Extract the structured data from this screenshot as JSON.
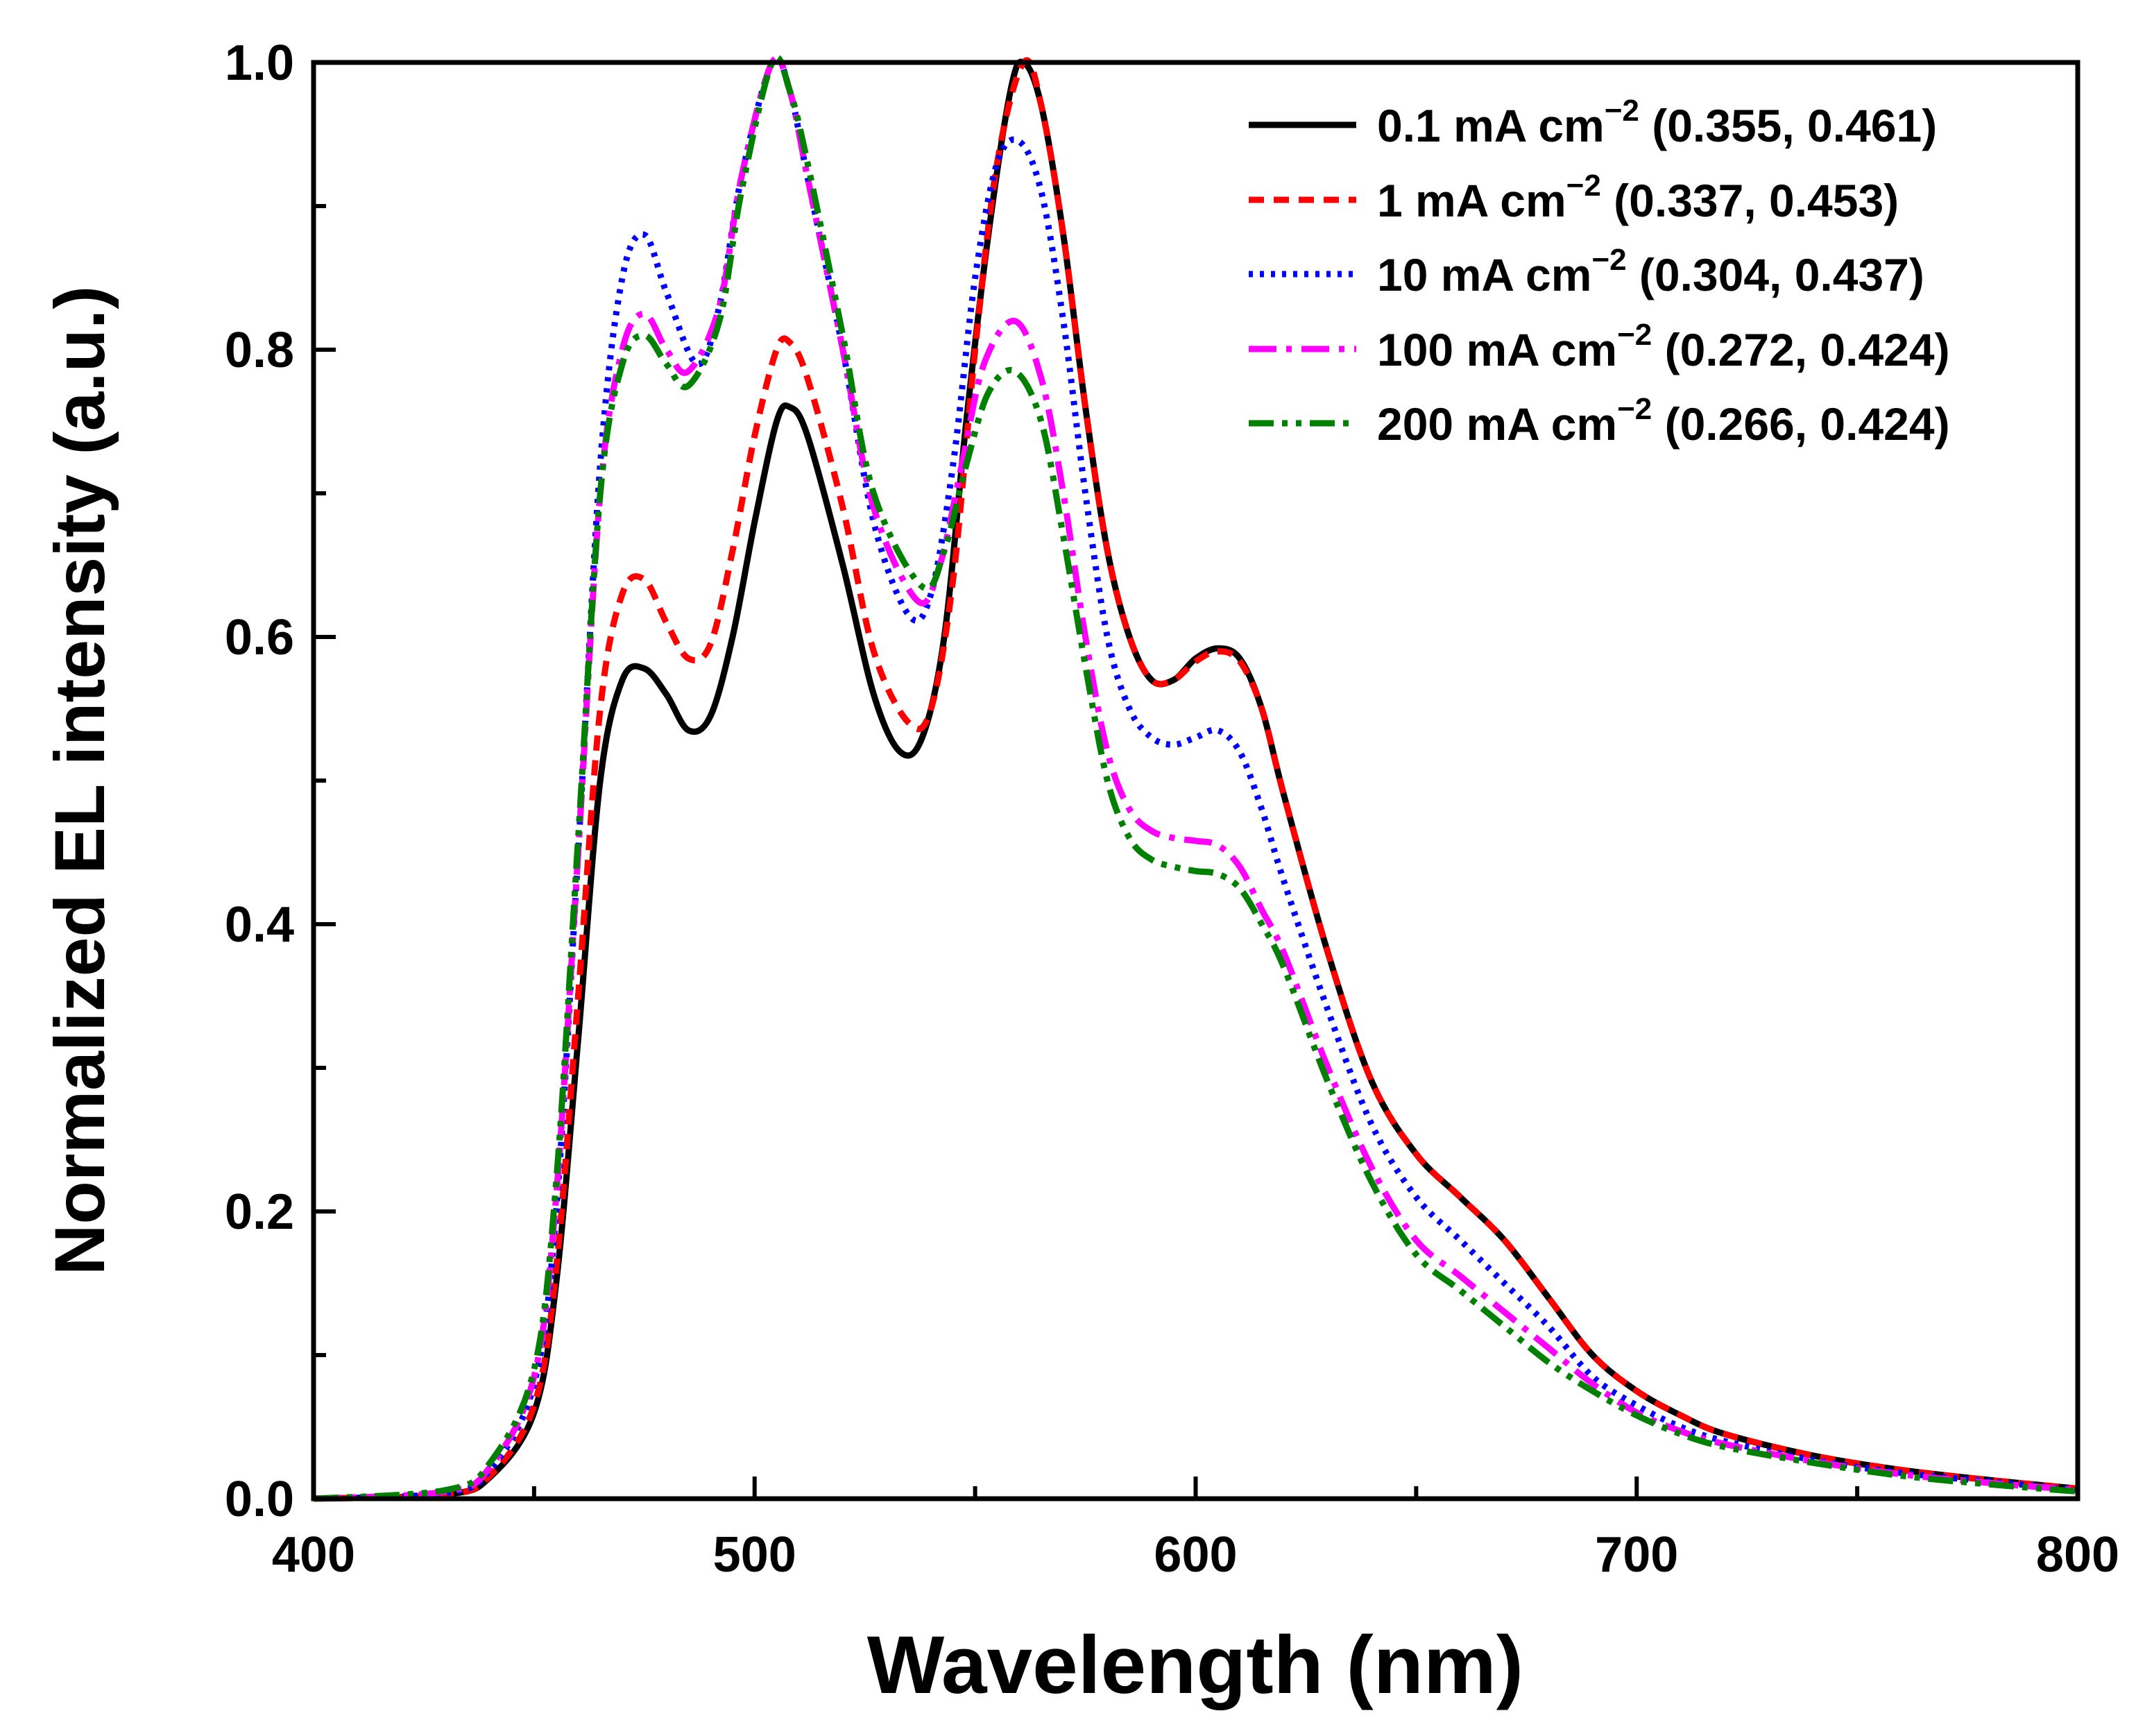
{
  "chart_data": {
    "type": "line",
    "title": "",
    "xlabel": "Wavelength (nm)",
    "ylabel": "Normalized EL intensity (a.u.)",
    "xlim": [
      400,
      800
    ],
    "ylim": [
      0,
      1.0
    ],
    "xticks": [
      "400",
      "500",
      "600",
      "700",
      "800"
    ],
    "yticks": [
      "0.0",
      "0.2",
      "0.4",
      "0.6",
      "0.8",
      "1.0"
    ],
    "grid": false,
    "legend_position": "top-right",
    "series": [
      {
        "name": "0.1  mA cm",
        "sup": "−2",
        "cie": "(0.355, 0.461)",
        "color": "#000000",
        "dash": "solid",
        "x": [
          400,
          430,
          440,
          450,
          455,
          460,
          465,
          470,
          475,
          480,
          485,
          490,
          495,
          500,
          505,
          508,
          512,
          520,
          527,
          533,
          538,
          543,
          548,
          553,
          558,
          561,
          565,
          570,
          575,
          580,
          585,
          590,
          595,
          600,
          605,
          610,
          615,
          620,
          630,
          640,
          650,
          660,
          670,
          680,
          690,
          700,
          710,
          720,
          740,
          760,
          780,
          800
        ],
        "y": [
          0,
          0.003,
          0.015,
          0.06,
          0.15,
          0.32,
          0.5,
          0.57,
          0.578,
          0.56,
          0.535,
          0.545,
          0.6,
          0.68,
          0.75,
          0.76,
          0.74,
          0.65,
          0.56,
          0.52,
          0.53,
          0.6,
          0.75,
          0.88,
          0.98,
          1.0,
          0.97,
          0.88,
          0.76,
          0.66,
          0.6,
          0.57,
          0.57,
          0.585,
          0.592,
          0.585,
          0.55,
          0.49,
          0.38,
          0.29,
          0.24,
          0.21,
          0.18,
          0.14,
          0.1,
          0.075,
          0.058,
          0.045,
          0.03,
          0.02,
          0.013,
          0.007
        ]
      },
      {
        "name": "1   mA cm",
        "sup": "−2",
        "cie": "(0.337, 0.453)",
        "color": "#ff0000",
        "dash": "dash",
        "x": [
          400,
          430,
          440,
          450,
          455,
          460,
          465,
          470,
          475,
          480,
          485,
          490,
          495,
          500,
          505,
          508,
          512,
          520,
          527,
          535,
          540,
          545,
          550,
          555,
          561,
          565,
          570,
          575,
          580,
          585,
          590,
          595,
          600,
          605,
          610,
          615,
          620,
          630,
          640,
          650,
          660,
          670,
          680,
          690,
          700,
          710,
          720,
          740,
          760,
          780,
          800
        ],
        "y": [
          0,
          0.003,
          0.016,
          0.065,
          0.16,
          0.35,
          0.55,
          0.63,
          0.64,
          0.61,
          0.585,
          0.595,
          0.66,
          0.74,
          0.8,
          0.805,
          0.78,
          0.69,
          0.59,
          0.54,
          0.55,
          0.64,
          0.8,
          0.93,
          1.0,
          0.97,
          0.88,
          0.76,
          0.66,
          0.6,
          0.57,
          0.57,
          0.583,
          0.59,
          0.583,
          0.55,
          0.49,
          0.38,
          0.29,
          0.24,
          0.21,
          0.18,
          0.14,
          0.1,
          0.075,
          0.058,
          0.045,
          0.03,
          0.02,
          0.013,
          0.007
        ]
      },
      {
        "name": "10  mA cm",
        "sup": "−2",
        "cie": "(0.304, 0.437)",
        "color": "#0000ff",
        "dash": "dot",
        "x": [
          400,
          430,
          440,
          450,
          455,
          460,
          465,
          470,
          475,
          480,
          487,
          492,
          497,
          504,
          508,
          512,
          520,
          527,
          535,
          540,
          545,
          550,
          555,
          560,
          565,
          570,
          575,
          580,
          585,
          590,
          595,
          600,
          605,
          610,
          615,
          620,
          630,
          640,
          650,
          660,
          670,
          680,
          690,
          700,
          710,
          720,
          740,
          760,
          780,
          800
        ],
        "y": [
          0,
          0.004,
          0.02,
          0.08,
          0.2,
          0.45,
          0.72,
          0.85,
          0.88,
          0.84,
          0.79,
          0.83,
          0.92,
          1.0,
          0.98,
          0.92,
          0.8,
          0.68,
          0.615,
          0.63,
          0.72,
          0.85,
          0.93,
          0.945,
          0.91,
          0.82,
          0.7,
          0.6,
          0.55,
          0.53,
          0.525,
          0.53,
          0.535,
          0.52,
          0.48,
          0.43,
          0.34,
          0.26,
          0.21,
          0.18,
          0.15,
          0.12,
          0.085,
          0.065,
          0.05,
          0.04,
          0.027,
          0.018,
          0.012,
          0.006
        ]
      },
      {
        "name": "100 mA cm",
        "sup": "−2",
        "cie": "(0.272, 0.424)",
        "color": "#ff00ff",
        "dash": "dashdot",
        "x": [
          400,
          430,
          440,
          450,
          455,
          460,
          465,
          470,
          475,
          480,
          485,
          492,
          497,
          504,
          508,
          512,
          520,
          527,
          537,
          542,
          547,
          552,
          559,
          565,
          570,
          575,
          580,
          585,
          590,
          595,
          600,
          605,
          610,
          615,
          620,
          630,
          640,
          650,
          660,
          670,
          680,
          690,
          700,
          710,
          720,
          740,
          760,
          780,
          800
        ],
        "y": [
          0,
          0.005,
          0.022,
          0.085,
          0.21,
          0.45,
          0.7,
          0.8,
          0.825,
          0.8,
          0.785,
          0.83,
          0.92,
          1.0,
          0.98,
          0.92,
          0.8,
          0.69,
          0.625,
          0.65,
          0.72,
          0.79,
          0.82,
          0.78,
          0.7,
          0.6,
          0.52,
          0.48,
          0.465,
          0.46,
          0.458,
          0.455,
          0.44,
          0.41,
          0.38,
          0.3,
          0.23,
          0.18,
          0.155,
          0.13,
          0.105,
          0.08,
          0.06,
          0.047,
          0.038,
          0.026,
          0.017,
          0.011,
          0.006
        ]
      },
      {
        "name": "200 mA cm",
        "sup": "−2",
        "cie": "(0.266, 0.424)",
        "color": "#008000",
        "dash": "dashdotdot",
        "x": [
          400,
          430,
          440,
          450,
          455,
          460,
          465,
          470,
          475,
          480,
          485,
          492,
          497,
          504,
          508,
          512,
          520,
          527,
          538,
          543,
          548,
          553,
          559,
          565,
          570,
          575,
          580,
          585,
          590,
          595,
          600,
          605,
          610,
          615,
          620,
          630,
          640,
          650,
          660,
          670,
          680,
          690,
          700,
          710,
          720,
          740,
          760,
          780,
          800
        ],
        "y": [
          0,
          0.006,
          0.025,
          0.09,
          0.22,
          0.46,
          0.7,
          0.79,
          0.81,
          0.79,
          0.775,
          0.82,
          0.91,
          1.0,
          0.98,
          0.93,
          0.81,
          0.7,
          0.635,
          0.66,
          0.72,
          0.77,
          0.785,
          0.75,
          0.67,
          0.58,
          0.5,
          0.46,
          0.445,
          0.44,
          0.437,
          0.435,
          0.425,
          0.4,
          0.37,
          0.29,
          0.22,
          0.17,
          0.145,
          0.12,
          0.095,
          0.075,
          0.058,
          0.045,
          0.036,
          0.025,
          0.016,
          0.01,
          0.005
        ]
      }
    ]
  }
}
